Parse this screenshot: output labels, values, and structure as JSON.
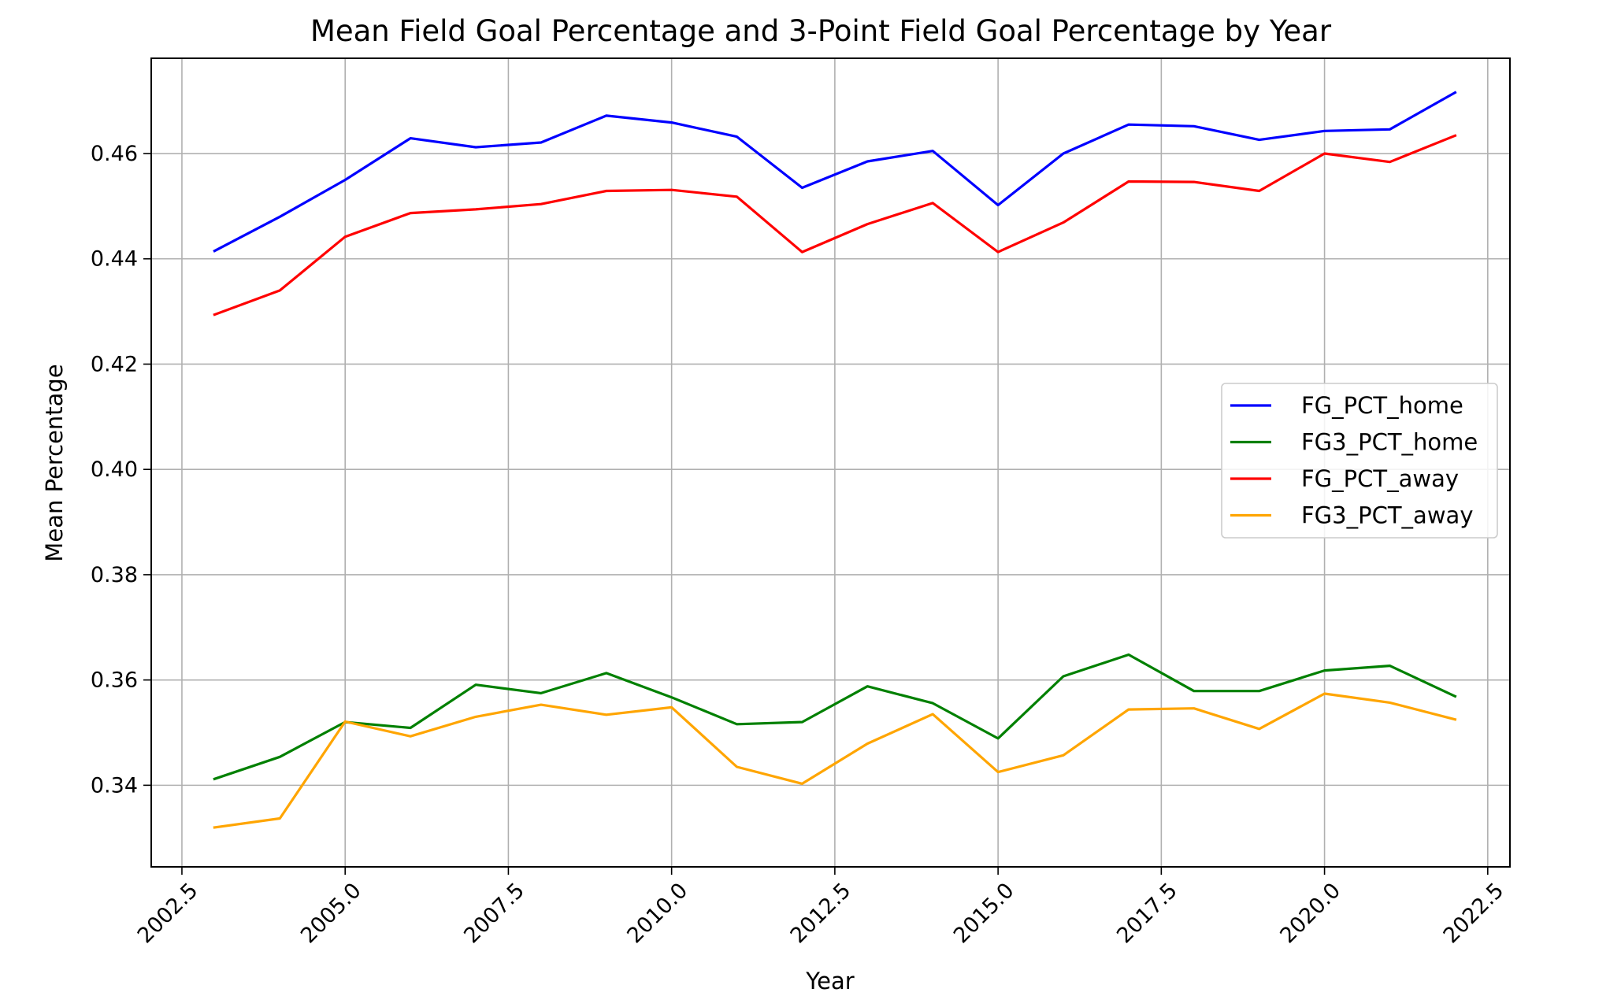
{
  "chart_data": {
    "type": "line",
    "title": "Mean Field Goal Percentage and 3-Point Field Goal Percentage by Year",
    "xlabel": "Year",
    "ylabel": "Mean Percentage",
    "xlim": [
      2002.03,
      2022.84
    ],
    "ylim": [
      0.3245,
      0.4781
    ],
    "x_ticks": [
      2002.5,
      2005.0,
      2007.5,
      2010.0,
      2012.5,
      2015.0,
      2017.5,
      2020.0,
      2022.5
    ],
    "x_tick_labels": [
      "2002.5",
      "2005.0",
      "2007.5",
      "2010.0",
      "2012.5",
      "2015.0",
      "2017.5",
      "2020.0",
      "2022.5"
    ],
    "y_ticks": [
      0.34,
      0.36,
      0.38,
      0.4,
      0.42,
      0.44,
      0.46
    ],
    "y_tick_labels": [
      "0.34",
      "0.36",
      "0.38",
      "0.40",
      "0.42",
      "0.44",
      "0.46"
    ],
    "grid": true,
    "legend_position": "center-right",
    "x": [
      2003,
      2004,
      2005,
      2006,
      2007,
      2008,
      2009,
      2010,
      2011,
      2012,
      2013,
      2014,
      2015,
      2016,
      2017,
      2018,
      2019,
      2020,
      2021,
      2022
    ],
    "series": [
      {
        "name": "FG_PCT_home",
        "color": "#0000ff",
        "values": [
          0.4415,
          0.448,
          0.455,
          0.4629,
          0.4612,
          0.4621,
          0.4672,
          0.4659,
          0.4632,
          0.4535,
          0.4585,
          0.4605,
          0.4502,
          0.46,
          0.4655,
          0.4652,
          0.4626,
          0.4643,
          0.4646,
          0.4716
        ]
      },
      {
        "name": "FG3_PCT_home",
        "color": "#008000",
        "values": [
          0.3412,
          0.3454,
          0.352,
          0.3509,
          0.3591,
          0.3575,
          0.3613,
          0.3567,
          0.3516,
          0.352,
          0.3588,
          0.3556,
          0.3489,
          0.3607,
          0.3648,
          0.3579,
          0.3579,
          0.3618,
          0.3627,
          0.3569
        ]
      },
      {
        "name": "FG_PCT_away",
        "color": "#ff0000",
        "values": [
          0.4294,
          0.434,
          0.4442,
          0.4487,
          0.4494,
          0.4504,
          0.4529,
          0.4531,
          0.4518,
          0.4413,
          0.4466,
          0.4506,
          0.4413,
          0.4469,
          0.4547,
          0.4546,
          0.4529,
          0.46,
          0.4584,
          0.4634
        ]
      },
      {
        "name": "FG3_PCT_away",
        "color": "#ffa500",
        "values": [
          0.332,
          0.3337,
          0.3521,
          0.3493,
          0.353,
          0.3553,
          0.3534,
          0.3548,
          0.3435,
          0.3403,
          0.3479,
          0.3535,
          0.3425,
          0.3457,
          0.3544,
          0.3546,
          0.3507,
          0.3574,
          0.3557,
          0.3525
        ]
      }
    ]
  }
}
